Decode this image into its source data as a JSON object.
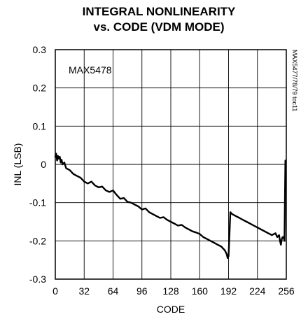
{
  "chart_data": {
    "type": "line",
    "title_line1": "INTEGRAL NONLINEARITY",
    "title_line2": "vs. CODE (VDM MODE)",
    "xlabel": "CODE",
    "ylabel": "INL (LSB)",
    "annotation": "MAX5478",
    "figure_code": "MAX5477/78/79 toc11",
    "xlim": [
      0,
      256
    ],
    "ylim": [
      -0.3,
      0.3
    ],
    "x_ticks": [
      "0",
      "32",
      "64",
      "96",
      "128",
      "160",
      "192",
      "224",
      "256"
    ],
    "y_ticks": [
      "0.3",
      "0.2",
      "0.1",
      "0",
      "-0.1",
      "-0.2",
      "-0.3"
    ],
    "grid": true,
    "series": [
      {
        "x": [
          0,
          1,
          2,
          3,
          4,
          5,
          6,
          7,
          8,
          10,
          12,
          16,
          20,
          24,
          28,
          32,
          36,
          40,
          44,
          48,
          52,
          56,
          60,
          64,
          68,
          72,
          76,
          80,
          84,
          88,
          92,
          96,
          100,
          104,
          108,
          112,
          116,
          120,
          124,
          128,
          132,
          136,
          140,
          144,
          148,
          152,
          156,
          160,
          164,
          168,
          172,
          176,
          180,
          184,
          186,
          188,
          189,
          190,
          191,
          192,
          194,
          196,
          200,
          204,
          208,
          212,
          216,
          220,
          224,
          228,
          232,
          236,
          240,
          244,
          246,
          248,
          249,
          250,
          251,
          252,
          253,
          254,
          255
        ],
        "y": [
          0.02,
          0.028,
          0.01,
          0.022,
          0.015,
          0.02,
          0.005,
          0.012,
          0.0,
          0.005,
          -0.01,
          -0.015,
          -0.025,
          -0.03,
          -0.035,
          -0.045,
          -0.05,
          -0.045,
          -0.055,
          -0.06,
          -0.058,
          -0.068,
          -0.072,
          -0.068,
          -0.08,
          -0.09,
          -0.088,
          -0.098,
          -0.1,
          -0.105,
          -0.11,
          -0.118,
          -0.115,
          -0.125,
          -0.13,
          -0.135,
          -0.14,
          -0.138,
          -0.145,
          -0.15,
          -0.155,
          -0.16,
          -0.158,
          -0.165,
          -0.17,
          -0.175,
          -0.178,
          -0.182,
          -0.19,
          -0.195,
          -0.2,
          -0.205,
          -0.21,
          -0.215,
          -0.22,
          -0.225,
          -0.23,
          -0.235,
          -0.245,
          -0.24,
          -0.125,
          -0.13,
          -0.135,
          -0.14,
          -0.145,
          -0.15,
          -0.155,
          -0.16,
          -0.165,
          -0.17,
          -0.175,
          -0.18,
          -0.185,
          -0.18,
          -0.19,
          -0.185,
          -0.2,
          -0.21,
          -0.195,
          -0.19,
          -0.19,
          -0.2,
          0.01
        ]
      }
    ]
  }
}
